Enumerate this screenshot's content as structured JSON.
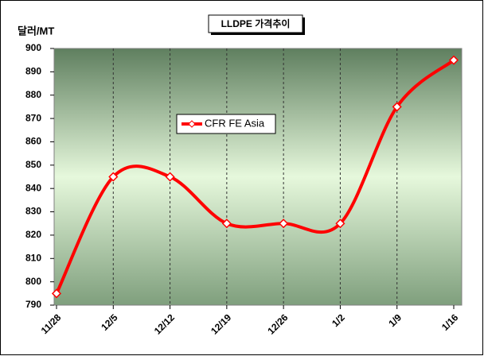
{
  "chart_data": {
    "type": "line",
    "title": "LLDPE 가격추이",
    "y_label": "달러/MT",
    "categories": [
      "11/28",
      "12/5",
      "12/12",
      "12/19",
      "12/26",
      "1/2",
      "1/9",
      "1/16"
    ],
    "series": [
      {
        "name": "CFR FE Asia",
        "color": "#ff0000",
        "values": [
          795,
          845,
          845,
          825,
          825,
          825,
          875,
          895
        ]
      }
    ],
    "ylim": [
      790,
      900
    ],
    "yticks": [
      790,
      800,
      810,
      820,
      830,
      840,
      850,
      860,
      870,
      880,
      890,
      900
    ],
    "grid": true,
    "smooth": true,
    "legend": "center"
  }
}
